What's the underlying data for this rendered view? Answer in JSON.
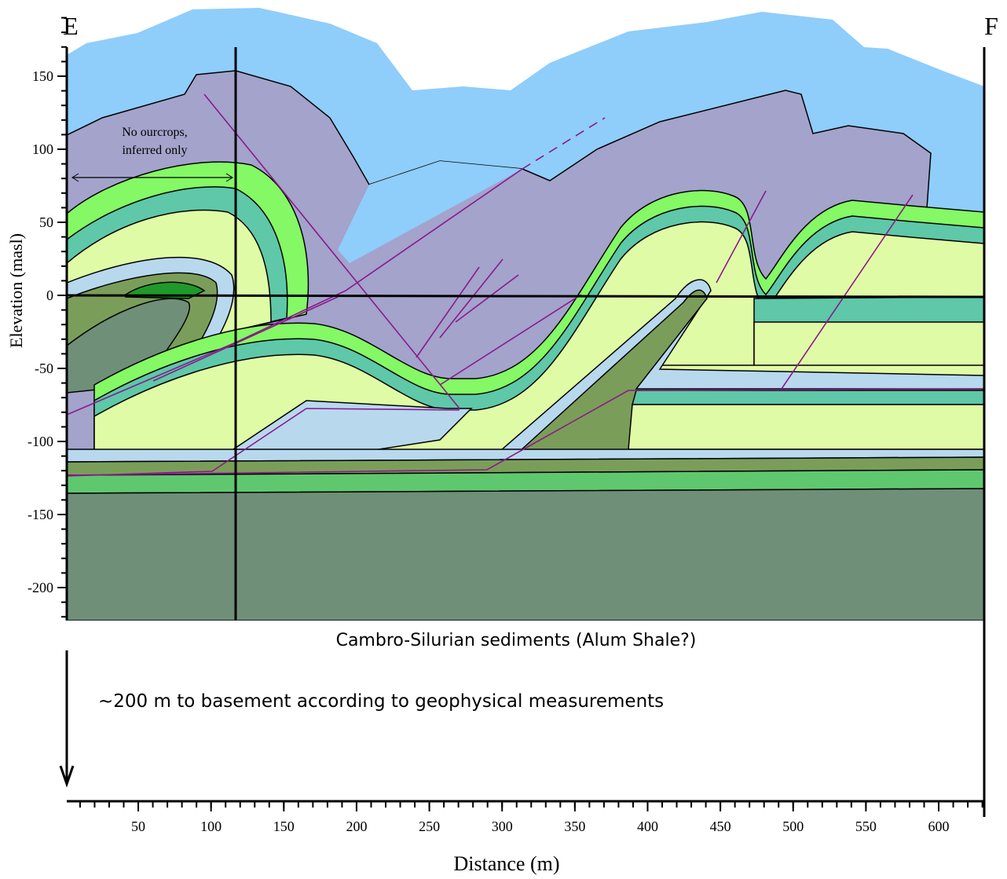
{
  "labels": {
    "left": "E",
    "right": "F"
  },
  "y_axis": {
    "title": "Elevation (masl)",
    "ticks": [
      150,
      100,
      50,
      0,
      -50,
      -100,
      -150,
      -200
    ]
  },
  "x_axis": {
    "title": "Distance (m)",
    "ticks": [
      50,
      100,
      150,
      200,
      250,
      300,
      350,
      400,
      450,
      500,
      550,
      600
    ]
  },
  "annotations": {
    "no_outcrops": [
      "No ourcrops,",
      "inferred only"
    ],
    "formation": "Cambro-Silurian sediments (Alum Shale?)",
    "basement": "~200 m to basement according to geophysical measurements"
  }
}
